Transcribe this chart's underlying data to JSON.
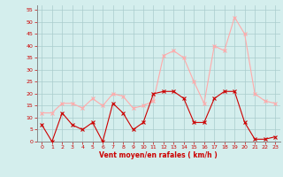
{
  "x": [
    0,
    1,
    2,
    3,
    4,
    5,
    6,
    7,
    8,
    9,
    10,
    11,
    12,
    13,
    14,
    15,
    16,
    17,
    18,
    19,
    20,
    21,
    22,
    23
  ],
  "wind_mean": [
    7,
    0,
    12,
    7,
    5,
    8,
    0,
    16,
    12,
    5,
    8,
    20,
    21,
    21,
    18,
    8,
    8,
    18,
    21,
    21,
    8,
    1,
    1,
    2
  ],
  "wind_gust": [
    12,
    12,
    16,
    16,
    14,
    18,
    15,
    20,
    19,
    14,
    15,
    17,
    36,
    38,
    35,
    25,
    16,
    40,
    38,
    52,
    45,
    20,
    17,
    16
  ],
  "bg_color": "#d4eeed",
  "grid_color": "#aacccc",
  "line_mean_color": "#cc0000",
  "line_gust_color": "#ffaaaa",
  "xlabel": "Vent moyen/en rafales ( km/h )",
  "xlabel_color": "#cc0000",
  "tick_color": "#cc0000",
  "axis_color": "#888888",
  "ylim": [
    0,
    57
  ],
  "yticks": [
    0,
    5,
    10,
    15,
    20,
    25,
    30,
    35,
    40,
    45,
    50,
    55
  ],
  "xticks": [
    0,
    1,
    2,
    3,
    4,
    5,
    6,
    7,
    8,
    9,
    10,
    11,
    12,
    13,
    14,
    15,
    16,
    17,
    18,
    19,
    20,
    21,
    22,
    23
  ],
  "fig_width": 3.2,
  "fig_height": 2.0,
  "dpi": 100
}
